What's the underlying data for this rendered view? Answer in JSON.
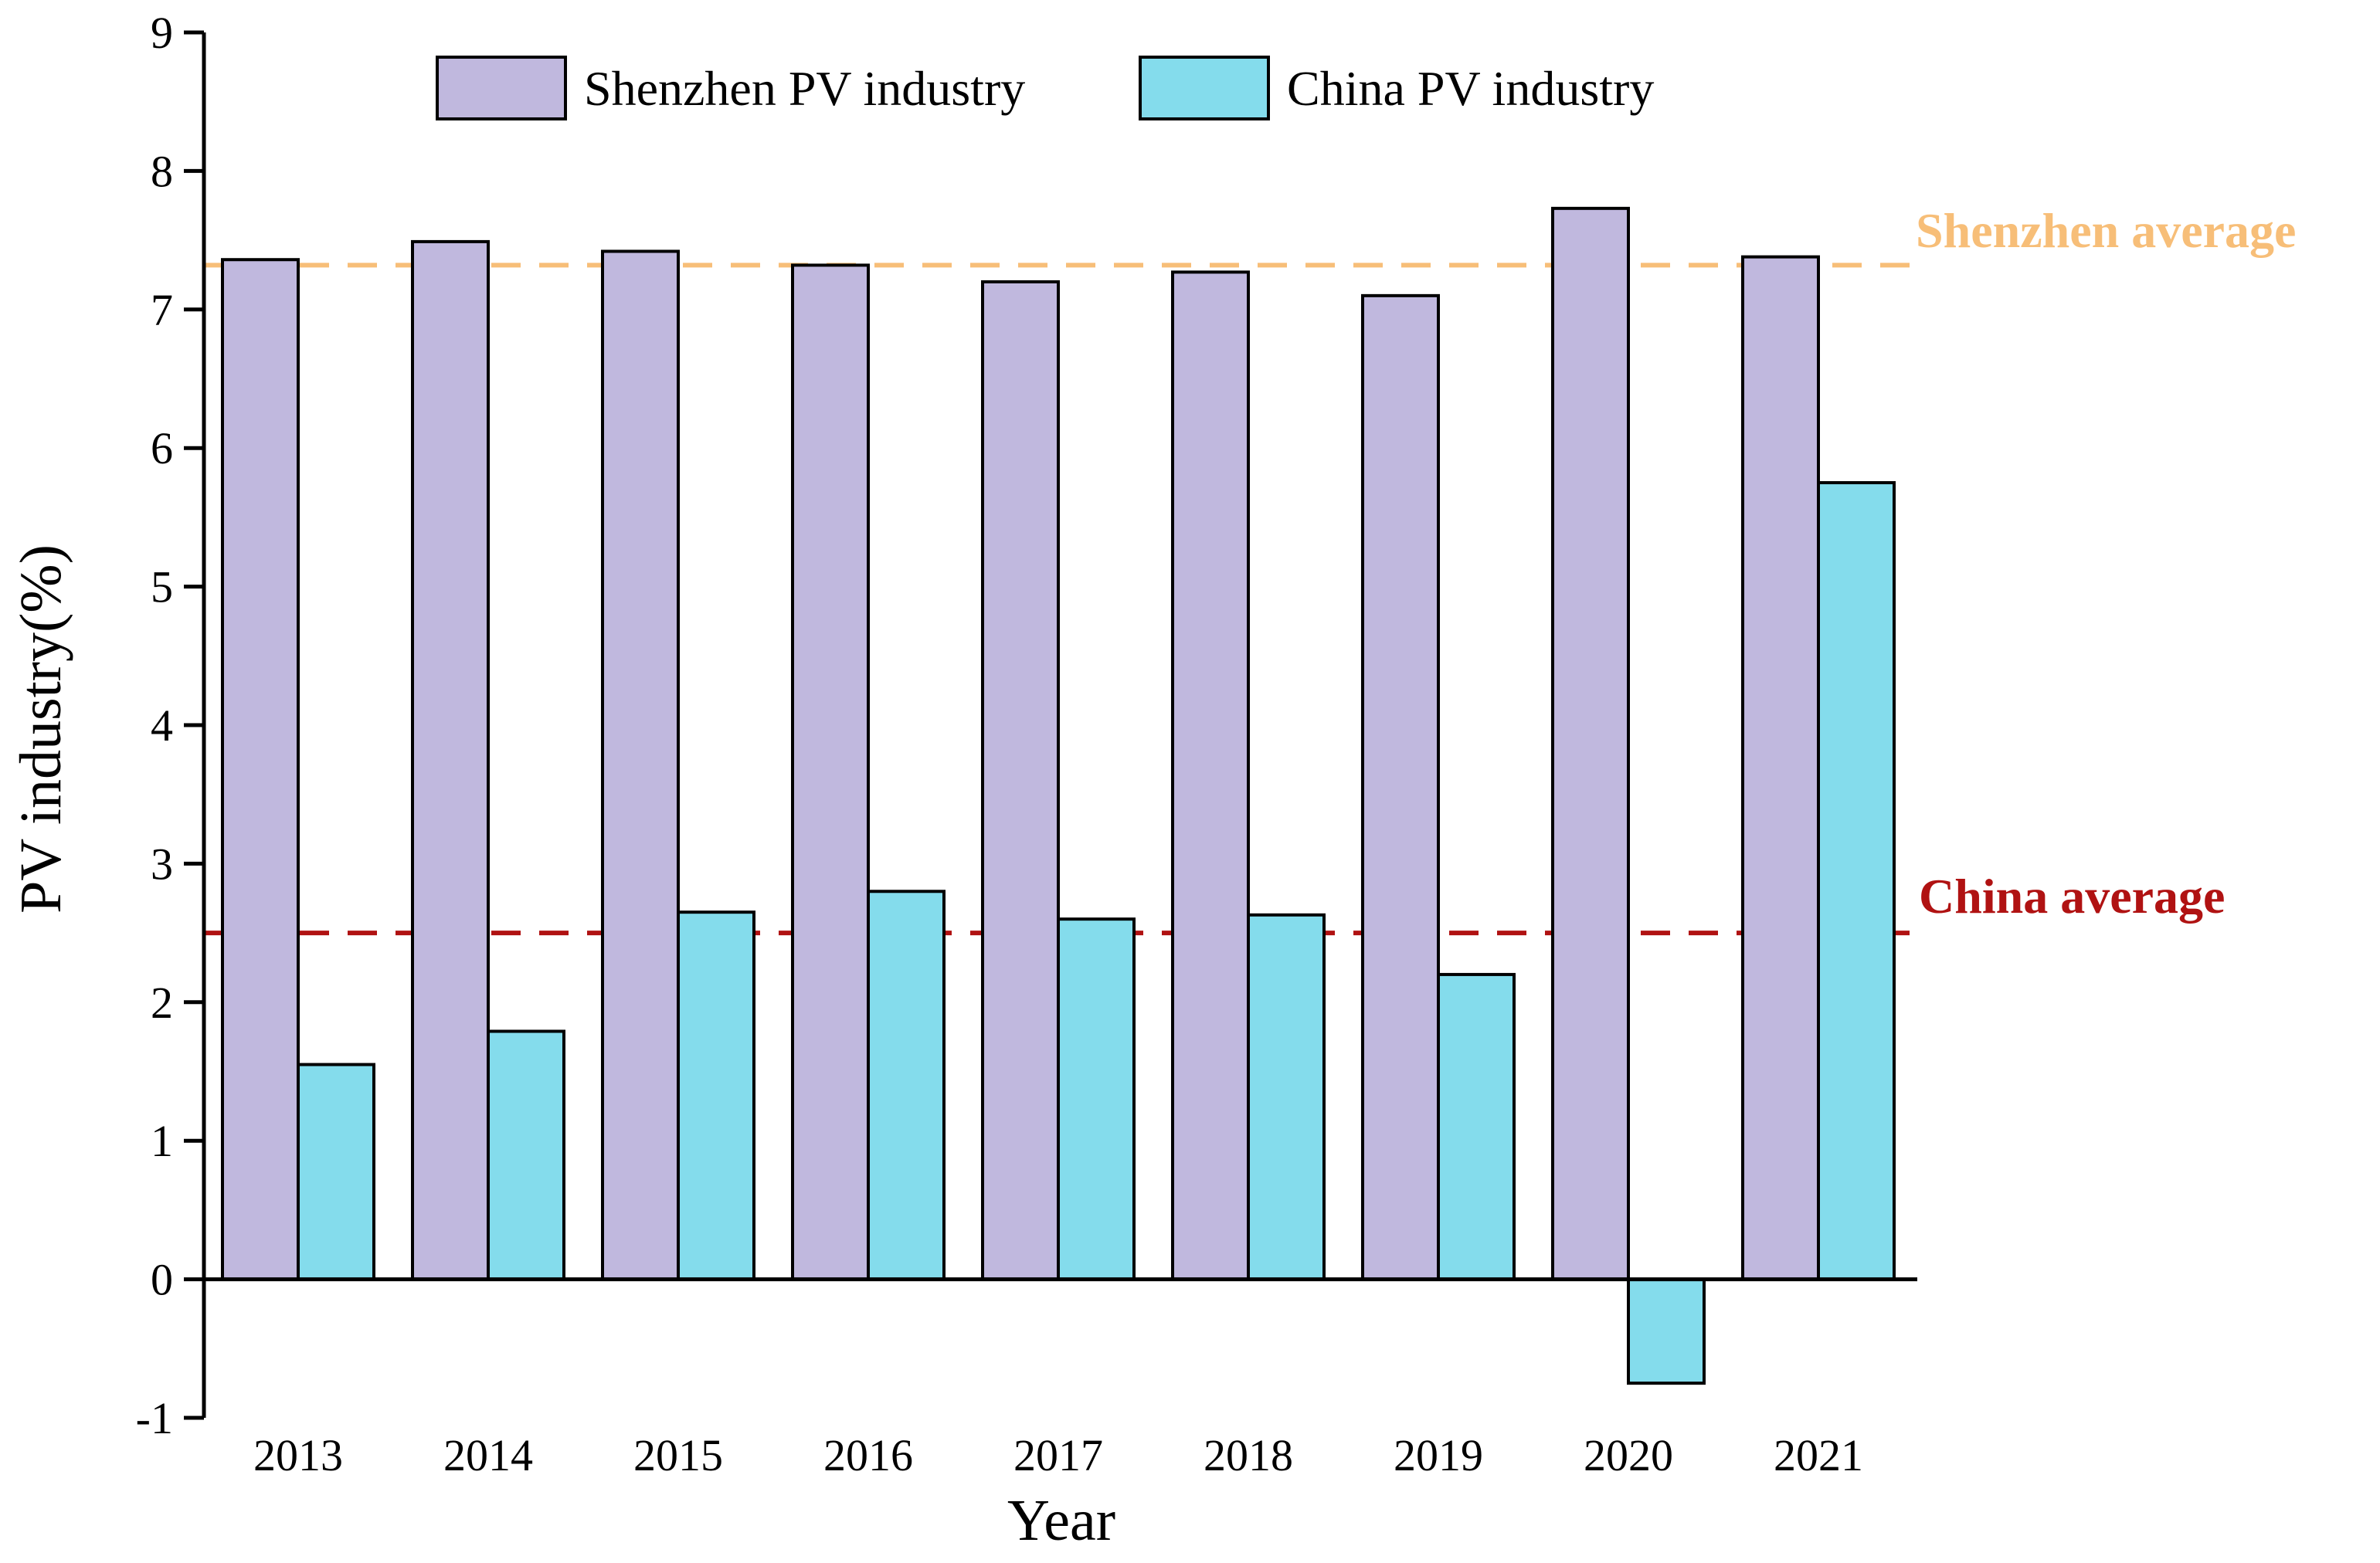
{
  "chart_data": {
    "type": "bar",
    "title": "",
    "xlabel": "Year",
    "ylabel": "PV industry(%)",
    "ylim": [
      -1,
      9
    ],
    "yticks": [
      -1,
      0,
      1,
      2,
      3,
      4,
      5,
      6,
      7,
      8,
      9
    ],
    "categories": [
      "2013",
      "2014",
      "2015",
      "2016",
      "2017",
      "2018",
      "2019",
      "2020",
      "2021"
    ],
    "series": [
      {
        "name": "Shenzhen PV industry",
        "color": "#C0B8DE",
        "values": [
          7.36,
          7.49,
          7.42,
          7.32,
          7.2,
          7.27,
          7.1,
          7.73,
          7.38
        ]
      },
      {
        "name": "China PV industry",
        "color": "#84DCEC",
        "values": [
          1.55,
          1.79,
          2.65,
          2.8,
          2.6,
          2.63,
          2.2,
          -0.75,
          5.75
        ]
      }
    ],
    "reference_lines": [
      {
        "label": "Shenzhen average",
        "value": 7.32,
        "color": "#F7BE78",
        "style": "dashed"
      },
      {
        "label": "China average",
        "value": 2.5,
        "color": "#B01212",
        "style": "dashed"
      }
    ],
    "legend_position": "top-center",
    "grid": false
  }
}
